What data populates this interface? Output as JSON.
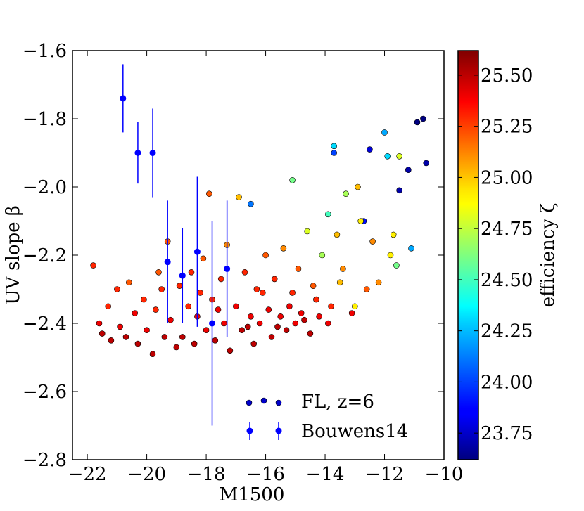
{
  "chart_data": {
    "type": "scatter",
    "title": "",
    "xlabel": "M1500",
    "ylabel": "UV slope β",
    "xlim": [
      -22.5,
      -10
    ],
    "ylim": [
      -2.8,
      -1.6
    ],
    "xticks": [
      -22,
      -20,
      -18,
      -16,
      -14,
      -12,
      -10
    ],
    "yticks": [
      -1.6,
      -1.8,
      -2.0,
      -2.2,
      -2.4,
      -2.6,
      -2.8
    ],
    "xtick_labels": [
      "−22",
      "−20",
      "−18",
      "−16",
      "−14",
      "−12",
      "−10"
    ],
    "ytick_labels": [
      "−1.6",
      "−1.8",
      "−2.0",
      "−2.2",
      "−2.4",
      "−2.6",
      "−2.8"
    ],
    "grid": false,
    "legend_position": "lower-right",
    "colorbar": {
      "label": "efficiency ζ",
      "range": [
        23.62,
        25.62
      ],
      "colormap": "jet",
      "ticks": [
        23.75,
        24.0,
        24.25,
        24.5,
        24.75,
        25.0,
        25.25,
        25.5
      ],
      "tick_labels": [
        "23.75",
        "24.00",
        "24.25",
        "24.50",
        "24.75",
        "25.00",
        "25.25",
        "25.50"
      ]
    },
    "series": [
      {
        "name": "FL, z=6",
        "kind": "scatter-colored",
        "points": [
          [
            -21.8,
            -2.23,
            25.3
          ],
          [
            -21.6,
            -2.4,
            25.4
          ],
          [
            -21.5,
            -2.43,
            25.5
          ],
          [
            -21.3,
            -2.35,
            25.3
          ],
          [
            -21.2,
            -2.45,
            25.5
          ],
          [
            -21.0,
            -2.3,
            25.3
          ],
          [
            -20.9,
            -2.41,
            25.4
          ],
          [
            -20.7,
            -2.44,
            25.5
          ],
          [
            -20.6,
            -2.28,
            25.2
          ],
          [
            -20.4,
            -2.37,
            25.4
          ],
          [
            -20.3,
            -2.46,
            25.5
          ],
          [
            -20.1,
            -2.33,
            25.3
          ],
          [
            -20.0,
            -2.42,
            25.4
          ],
          [
            -19.8,
            -2.49,
            25.5
          ],
          [
            -19.7,
            -2.36,
            25.3
          ],
          [
            -19.6,
            -2.25,
            25.2
          ],
          [
            -19.4,
            -2.44,
            25.5
          ],
          [
            -19.3,
            -2.16,
            25.2
          ],
          [
            -19.2,
            -2.39,
            25.4
          ],
          [
            -19.0,
            -2.47,
            25.5
          ],
          [
            -18.9,
            -2.29,
            25.3
          ],
          [
            -18.8,
            -2.44,
            25.5
          ],
          [
            -18.6,
            -2.35,
            25.3
          ],
          [
            -18.5,
            -2.25,
            25.3
          ],
          [
            -18.4,
            -2.46,
            25.5
          ],
          [
            -18.3,
            -2.38,
            25.4
          ],
          [
            -18.1,
            -2.21,
            25.2
          ],
          [
            -18.0,
            -2.42,
            25.4
          ],
          [
            -17.9,
            -2.02,
            25.2
          ],
          [
            -17.8,
            -2.33,
            25.3
          ],
          [
            -17.7,
            -2.45,
            25.5
          ],
          [
            -17.5,
            -2.27,
            25.3
          ],
          [
            -17.4,
            -2.4,
            25.4
          ],
          [
            -17.3,
            -2.17,
            25.1
          ],
          [
            -17.2,
            -2.48,
            25.5
          ],
          [
            -17.0,
            -2.35,
            25.4
          ],
          [
            -16.9,
            -2.03,
            25.0
          ],
          [
            -16.8,
            -2.42,
            25.5
          ],
          [
            -16.7,
            -2.25,
            25.3
          ],
          [
            -16.5,
            -2.38,
            25.4
          ],
          [
            -16.5,
            -2.05,
            24.1
          ],
          [
            -16.4,
            -2.46,
            25.5
          ],
          [
            -16.3,
            -2.3,
            25.3
          ],
          [
            -16.2,
            -2.4,
            25.4
          ],
          [
            -16.0,
            -2.2,
            25.2
          ],
          [
            -15.9,
            -2.36,
            25.4
          ],
          [
            -15.8,
            -2.44,
            25.5
          ],
          [
            -15.7,
            -2.27,
            25.3
          ],
          [
            -15.5,
            -2.38,
            25.4
          ],
          [
            -15.4,
            -2.18,
            25.1
          ],
          [
            -15.3,
            -2.42,
            25.5
          ],
          [
            -15.1,
            -1.98,
            24.6
          ],
          [
            -15.1,
            -2.31,
            25.3
          ],
          [
            -15.0,
            -2.4,
            25.4
          ],
          [
            -14.9,
            -2.24,
            25.2
          ],
          [
            -14.8,
            -2.37,
            25.4
          ],
          [
            -14.6,
            -2.13,
            24.8
          ],
          [
            -14.5,
            -2.43,
            25.5
          ],
          [
            -14.4,
            -2.29,
            25.2
          ],
          [
            -14.2,
            -2.38,
            25.4
          ],
          [
            -14.1,
            -2.2,
            24.7
          ],
          [
            -13.9,
            -2.08,
            24.5
          ],
          [
            -13.8,
            -2.35,
            25.3
          ],
          [
            -13.7,
            -1.9,
            24.0
          ],
          [
            -13.7,
            -1.88,
            24.3
          ],
          [
            -13.6,
            -2.14,
            25.0
          ],
          [
            -13.4,
            -2.24,
            25.1
          ],
          [
            -13.3,
            -2.02,
            24.7
          ],
          [
            -13.0,
            -2.35,
            24.9
          ],
          [
            -12.9,
            -2.0,
            25.0
          ],
          [
            -12.7,
            -2.1,
            23.9
          ],
          [
            -12.6,
            -2.3,
            25.2
          ],
          [
            -12.5,
            -1.89,
            23.8
          ],
          [
            -12.4,
            -2.16,
            25.1
          ],
          [
            -12.0,
            -1.84,
            24.2
          ],
          [
            -11.9,
            -1.91,
            24.3
          ],
          [
            -11.7,
            -2.14,
            24.9
          ],
          [
            -11.6,
            -2.23,
            24.6
          ],
          [
            -11.5,
            -1.91,
            24.8
          ],
          [
            -11.5,
            -2.01,
            23.7
          ],
          [
            -11.2,
            -1.95,
            23.7
          ],
          [
            -11.1,
            -2.18,
            24.2
          ],
          [
            -10.9,
            -1.81,
            23.6
          ],
          [
            -10.7,
            -1.8,
            23.6
          ],
          [
            -10.6,
            -1.93,
            23.7
          ],
          [
            -19.5,
            -2.3,
            25.3
          ],
          [
            -18.2,
            -2.31,
            25.3
          ],
          [
            -17.6,
            -2.36,
            25.4
          ],
          [
            -16.1,
            -2.31,
            25.3
          ],
          [
            -15.2,
            -2.35,
            25.4
          ],
          [
            -14.3,
            -2.33,
            25.3
          ],
          [
            -13.5,
            -2.28,
            25.0
          ],
          [
            -16.6,
            -2.41,
            25.5
          ],
          [
            -15.6,
            -2.41,
            25.5
          ],
          [
            -14.7,
            -2.39,
            25.5
          ],
          [
            -13.9,
            -2.4,
            25.4
          ],
          [
            -13.1,
            -2.37,
            25.4
          ],
          [
            -12.2,
            -2.28,
            25.1
          ],
          [
            -11.8,
            -2.2,
            24.9
          ],
          [
            -12.8,
            -2.1,
            24.9
          ]
        ]
      },
      {
        "name": "Bouwens14",
        "kind": "errorbar",
        "color": "#0000ff",
        "points": [
          {
            "x": -20.8,
            "y": -1.74,
            "yerr": 0.1
          },
          {
            "x": -20.3,
            "y": -1.9,
            "yerr": 0.09
          },
          {
            "x": -19.8,
            "y": -1.9,
            "yerr": 0.13
          },
          {
            "x": -19.3,
            "y": -2.22,
            "yerr": 0.18
          },
          {
            "x": -18.8,
            "y": -2.26,
            "yerr": 0.14
          },
          {
            "x": -18.3,
            "y": -2.19,
            "yerr": 0.22
          },
          {
            "x": -17.8,
            "y": -2.4,
            "yerr": 0.3
          },
          {
            "x": -17.3,
            "y": -2.24,
            "yerr": 0.2
          }
        ]
      }
    ]
  },
  "legend": {
    "items": [
      {
        "label": "FL, z=6"
      },
      {
        "label": "Bouwens14"
      }
    ]
  }
}
